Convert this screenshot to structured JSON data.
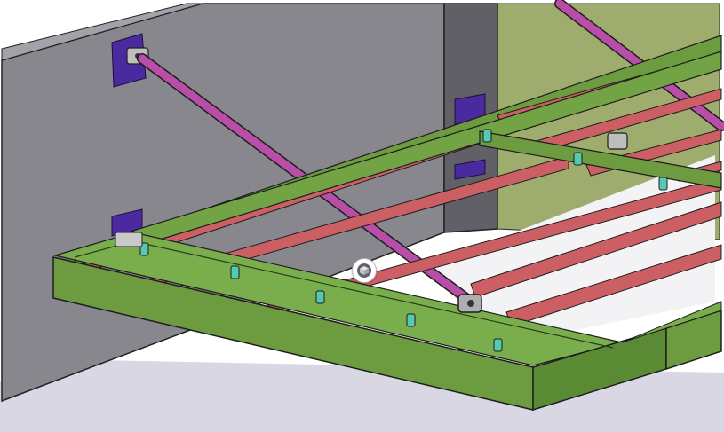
{
  "viewport": {
    "background_color": "#ffffff",
    "floor_color": "#d8d6e3",
    "wall_color": "#86858c",
    "wall_side_color": "#5c5b61",
    "back_wall_color": "#9dab6d",
    "frame_color": "#6c9b40",
    "frame_dark_color": "#4d7a2a",
    "joist_color": "#cc5e62",
    "brace_color": "#b94ea8",
    "plate_color": "#4a2a9e",
    "clip_color": "#57c9b0"
  },
  "icons": {
    "center_marker": "view-center-cube-icon"
  }
}
